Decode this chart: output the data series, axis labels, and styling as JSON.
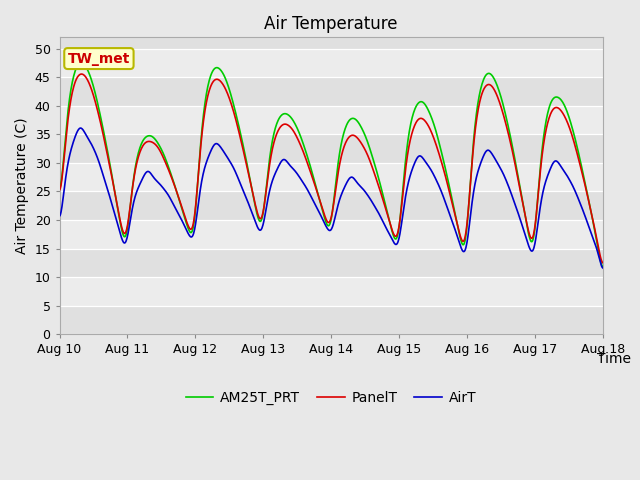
{
  "title": "Air Temperature",
  "ylabel": "Air Temperature (C)",
  "xlabel": "Time",
  "annotation_text": "TW_met",
  "annotation_bg": "#ffffcc",
  "annotation_border": "#b8b800",
  "annotation_text_color": "#cc0000",
  "legend_labels": [
    "PanelT",
    "AirT",
    "AM25T_PRT"
  ],
  "legend_colors": [
    "#dd0000",
    "#0000cc",
    "#00cc00"
  ],
  "ylim": [
    0,
    52
  ],
  "yticks": [
    0,
    5,
    10,
    15,
    20,
    25,
    30,
    35,
    40,
    45,
    50
  ],
  "bg_color": "#e8e8e8",
  "plot_bg_light": "#ececec",
  "plot_bg_dark": "#e0e0e0",
  "grid_color": "#ffffff",
  "title_fontsize": 12,
  "axis_fontsize": 10,
  "tick_fontsize": 9,
  "legend_fontsize": 10,
  "line_width": 1.2
}
